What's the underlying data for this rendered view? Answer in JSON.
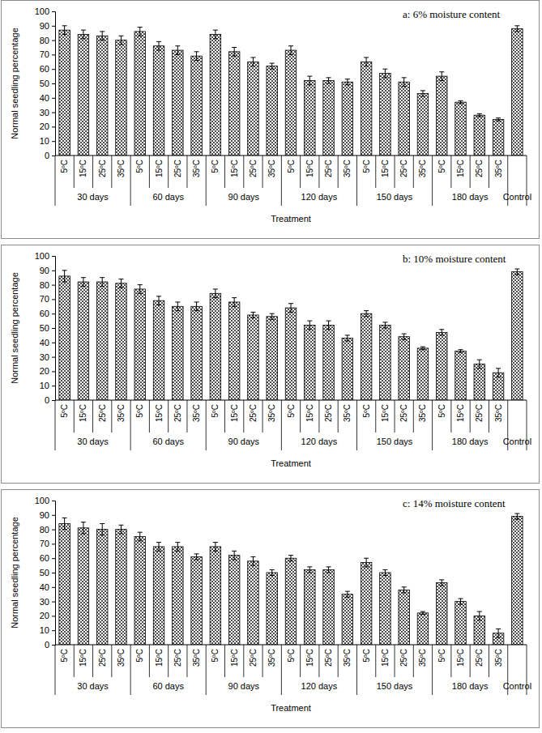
{
  "chart_data": [
    {
      "type": "bar",
      "title": "a: 6% moisture content",
      "x_label": "Treatment",
      "y_label": "Normal seedling percentage",
      "categories": [
        [
          "5ºC",
          "30 days"
        ],
        [
          "15ºC",
          "30 days"
        ],
        [
          "25ºC",
          "30 days"
        ],
        [
          "35ºC",
          "30 days"
        ],
        [
          "5ºC",
          "60 days"
        ],
        [
          "15ºC",
          "60 days"
        ],
        [
          "25ºC",
          "60 days"
        ],
        [
          "35ºC",
          "60 days"
        ],
        [
          "5ºC",
          "90 days"
        ],
        [
          "15ºC",
          "90 days"
        ],
        [
          "25ºC",
          "90 days"
        ],
        [
          "35ºC",
          "90 days"
        ],
        [
          "5ºC",
          "120 days"
        ],
        [
          "15ºC",
          "120 days"
        ],
        [
          "25ºC",
          "120 days"
        ],
        [
          "35ºC",
          "120 days"
        ],
        [
          "5ºC",
          "150 days"
        ],
        [
          "15ºC",
          "150 days"
        ],
        [
          "25ºC",
          "150 days"
        ],
        [
          "35ºC",
          "150 days"
        ],
        [
          "5ºC",
          "180 days"
        ],
        [
          "15ºC",
          "180 days"
        ],
        [
          "25ºC",
          "180 days"
        ],
        [
          "35ºC",
          "180 days"
        ],
        [
          null,
          "Control"
        ]
      ],
      "values": [
        87,
        84,
        83,
        80,
        86,
        76,
        73,
        69,
        84,
        72,
        65,
        62,
        73,
        52,
        52,
        51,
        65,
        57,
        51,
        43,
        55,
        37,
        28,
        25,
        88
      ],
      "errors": [
        3,
        3,
        3,
        3,
        3,
        3,
        3,
        3,
        3,
        3,
        3,
        2,
        3,
        3,
        2,
        2,
        3,
        3,
        3,
        2,
        3,
        1,
        1,
        1,
        2
      ],
      "color": "#000000",
      "ylim": [
        0,
        100
      ],
      "yticks": [
        0,
        10,
        20,
        30,
        40,
        50,
        60,
        70,
        80,
        90,
        100
      ],
      "grid": false
    },
    {
      "type": "bar",
      "title": "b: 10% moisture content",
      "x_label": "Treatment",
      "y_label": "Normal seedling percentage",
      "categories": [
        [
          "5ºC",
          "30 days"
        ],
        [
          "15ºC",
          "30 days"
        ],
        [
          "25ºC",
          "30 days"
        ],
        [
          "35ºC",
          "30 days"
        ],
        [
          "5ºC",
          "60 days"
        ],
        [
          "15ºC",
          "60 days"
        ],
        [
          "25ºC",
          "60 days"
        ],
        [
          "35ºC",
          "60 days"
        ],
        [
          "5ºC",
          "90 days"
        ],
        [
          "15ºC",
          "90 days"
        ],
        [
          "25ºC",
          "90 days"
        ],
        [
          "35ºC",
          "90 days"
        ],
        [
          "5ºC",
          "120 days"
        ],
        [
          "15ºC",
          "120 days"
        ],
        [
          "25ºC",
          "120 days"
        ],
        [
          "35ºC",
          "120 days"
        ],
        [
          "5ºC",
          "150 days"
        ],
        [
          "15ºC",
          "150 days"
        ],
        [
          "25ºC",
          "150 days"
        ],
        [
          "35ºC",
          "150 days"
        ],
        [
          "5ºC",
          "180 days"
        ],
        [
          "15ºC",
          "180 days"
        ],
        [
          "25ºC",
          "180 days"
        ],
        [
          "35ºC",
          "180 days"
        ],
        [
          null,
          "Control"
        ]
      ],
      "values": [
        86,
        82,
        82,
        81,
        77,
        69,
        65,
        65,
        74,
        68,
        59,
        58,
        64,
        52,
        52,
        43,
        60,
        52,
        44,
        36,
        47,
        34,
        25,
        19,
        89
      ],
      "errors": [
        4,
        3,
        3,
        3,
        3,
        3,
        3,
        3,
        3,
        3,
        2,
        2,
        3,
        3,
        3,
        2,
        2,
        2,
        2,
        1,
        2,
        1,
        3,
        3,
        2
      ],
      "color": "#000000",
      "ylim": [
        0,
        100
      ],
      "yticks": [
        0,
        10,
        20,
        30,
        40,
        50,
        60,
        70,
        80,
        90,
        100
      ],
      "grid": false
    },
    {
      "type": "bar",
      "title": "c: 14% moisture content",
      "x_label": "Treatment",
      "y_label": "Normal seedling percentage",
      "categories": [
        [
          "5ºC",
          "30 days"
        ],
        [
          "15ºC",
          "30 days"
        ],
        [
          "25ºC",
          "30 days"
        ],
        [
          "35ºC",
          "30 days"
        ],
        [
          "5ºC",
          "60 days"
        ],
        [
          "15ºC",
          "60 days"
        ],
        [
          "25ºC",
          "60 days"
        ],
        [
          "35ºC",
          "60 days"
        ],
        [
          "5ºC",
          "90 days"
        ],
        [
          "15ºC",
          "90 days"
        ],
        [
          "25ºC",
          "90 days"
        ],
        [
          "35ºC",
          "90 days"
        ],
        [
          "5ºC",
          "120 days"
        ],
        [
          "15ºC",
          "120 days"
        ],
        [
          "25ºC",
          "120 days"
        ],
        [
          "35ºC",
          "120 days"
        ],
        [
          "5ºC",
          "150 days"
        ],
        [
          "15ºC",
          "150 days"
        ],
        [
          "25ºC",
          "150 days"
        ],
        [
          "35ºC",
          "150 days"
        ],
        [
          "5ºC",
          "180 days"
        ],
        [
          "15ºC",
          "180 days"
        ],
        [
          "25ºC",
          "180 days"
        ],
        [
          "35ºC",
          "180 days"
        ],
        [
          null,
          "Control"
        ]
      ],
      "values": [
        84,
        81,
        80,
        80,
        75,
        68,
        68,
        61,
        68,
        62,
        58,
        50,
        60,
        52,
        52,
        35,
        57,
        50,
        38,
        22,
        43,
        30,
        20,
        8,
        89
      ],
      "errors": [
        4,
        4,
        4,
        3,
        3,
        3,
        3,
        2,
        3,
        3,
        3,
        2,
        2,
        2,
        2,
        2,
        3,
        2,
        2,
        1,
        2,
        2,
        3,
        3,
        2
      ],
      "color": "#000000",
      "ylim": [
        0,
        100
      ],
      "yticks": [
        0,
        10,
        20,
        30,
        40,
        50,
        60,
        70,
        80,
        90,
        100
      ],
      "grid": false
    }
  ]
}
